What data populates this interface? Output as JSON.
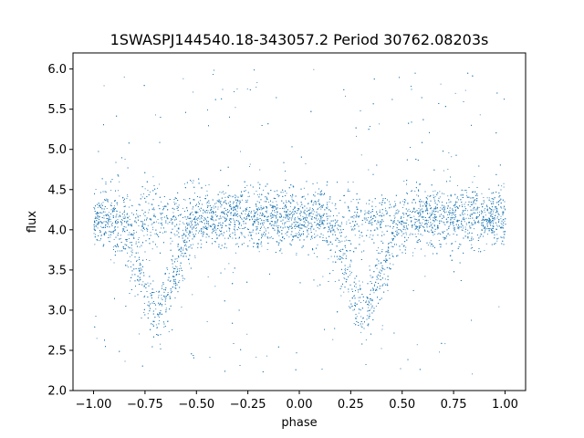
{
  "chart_data": {
    "type": "scatter",
    "title": "1SWASPJ144540.18-343057.2 Period 30762.08203s",
    "xlabel": "phase",
    "ylabel": "flux",
    "xlim": [
      -1.1,
      1.1
    ],
    "ylim": [
      2.0,
      6.2
    ],
    "x_ticks": [
      -1.0,
      -0.75,
      -0.5,
      -0.25,
      0.0,
      0.25,
      0.5,
      0.75,
      1.0
    ],
    "x_tick_labels": [
      "−1.00",
      "−0.75",
      "−0.50",
      "−0.25",
      "0.00",
      "0.25",
      "0.50",
      "0.75",
      "1.00"
    ],
    "y_ticks": [
      2.0,
      2.5,
      3.0,
      3.5,
      4.0,
      4.5,
      5.0,
      5.5,
      6.0
    ],
    "y_tick_labels": [
      "2.0",
      "2.5",
      "3.0",
      "3.5",
      "4.0",
      "4.5",
      "5.0",
      "5.5",
      "6.0"
    ],
    "point_color": "#1f77b4",
    "grid": false,
    "legend": "none",
    "series": [
      {
        "phase_range": [
          -1.0,
          1.0
        ],
        "baseline_flux": 4.15,
        "baseline_scatter": 0.18,
        "eclipses": [
          {
            "center_phase": -0.69,
            "min_flux": 2.95,
            "width": 0.2
          },
          {
            "center_phase": 0.31,
            "min_flux": 2.95,
            "width": 0.2
          }
        ],
        "flux_range": [
          2.2,
          6.0
        ]
      }
    ]
  }
}
